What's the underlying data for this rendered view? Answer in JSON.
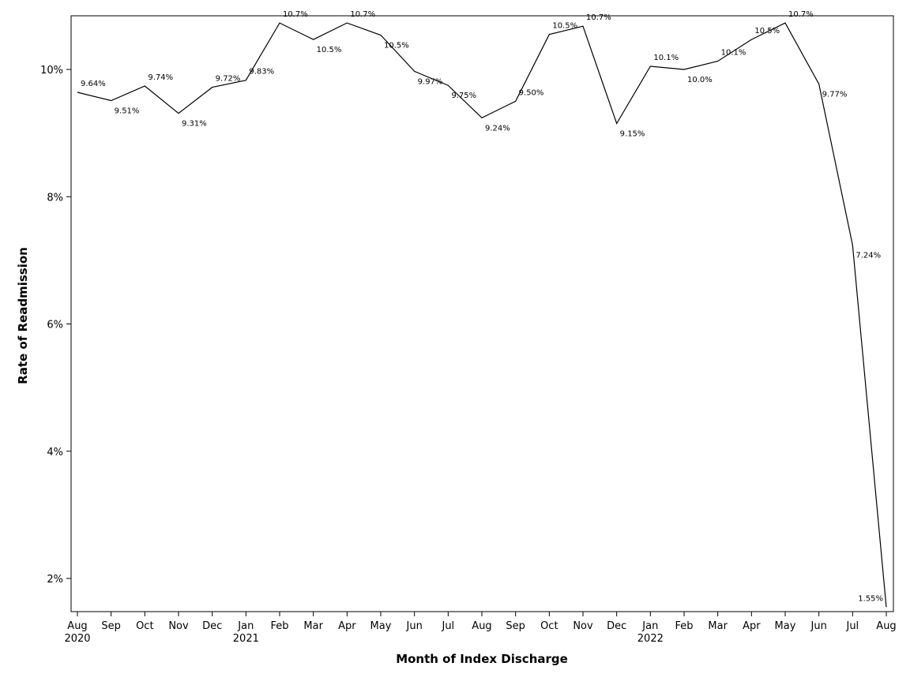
{
  "chart_data": {
    "type": "line",
    "title": "",
    "xlabel": "Month of Index Discharge",
    "ylabel": "Rate of Readmission",
    "ylim": [
      1.5,
      10.85
    ],
    "yticks": [
      2,
      4,
      6,
      8,
      10
    ],
    "ytick_labels": [
      "2%",
      "4%",
      "6%",
      "8%",
      "10%"
    ],
    "grid": false,
    "categories": [
      "Aug 2020",
      "Sep 2020",
      "Oct 2020",
      "Nov 2020",
      "Dec 2020",
      "Jan 2021",
      "Feb 2021",
      "Mar 2021",
      "Apr 2021",
      "May 2021",
      "Jun 2021",
      "Jul 2021",
      "Aug 2021",
      "Sep 2021",
      "Oct 2021",
      "Nov 2021",
      "Dec 2021",
      "Jan 2022",
      "Feb 2022",
      "Mar 2022",
      "Apr 2022",
      "May 2022",
      "Jun 2022",
      "Jul 2022",
      "Aug 2022"
    ],
    "tick_month": [
      "Aug",
      "Sep",
      "Oct",
      "Nov",
      "Dec",
      "Jan",
      "Feb",
      "Mar",
      "Apr",
      "May",
      "Jun",
      "Jul",
      "Aug",
      "Sep",
      "Oct",
      "Nov",
      "Dec",
      "Jan",
      "Feb",
      "Mar",
      "Apr",
      "May",
      "Jun",
      "Jul",
      "Aug"
    ],
    "tick_year": [
      "2020",
      "",
      "",
      "",
      "",
      "2021",
      "",
      "",
      "",
      "",
      "",
      "",
      "",
      "",
      "",
      "",
      "",
      "2022",
      "",
      "",
      "",
      "",
      "",
      "",
      ""
    ],
    "values": [
      9.64,
      9.51,
      9.74,
      9.31,
      9.72,
      9.83,
      10.73,
      10.47,
      10.73,
      10.54,
      9.97,
      9.75,
      9.24,
      9.5,
      10.55,
      10.68,
      9.15,
      10.05,
      10.0,
      10.13,
      10.47,
      10.73,
      9.77,
      7.24,
      1.55
    ],
    "data_labels": [
      "9.64%",
      "9.51%",
      "9.74%",
      "9.31%",
      "9.72%",
      "9.83%",
      "10.7%",
      "10.5%",
      "10.7%",
      "10.5%",
      "9.97%",
      "9.75%",
      "9.24%",
      "9.50%",
      "10.5%",
      "10.7%",
      "9.15%",
      "10.1%",
      "10.0%",
      "10.1%",
      "10.5%",
      "10.7%",
      "9.77%",
      "7.24%",
      "1.55%"
    ],
    "line_color": "#000000"
  }
}
